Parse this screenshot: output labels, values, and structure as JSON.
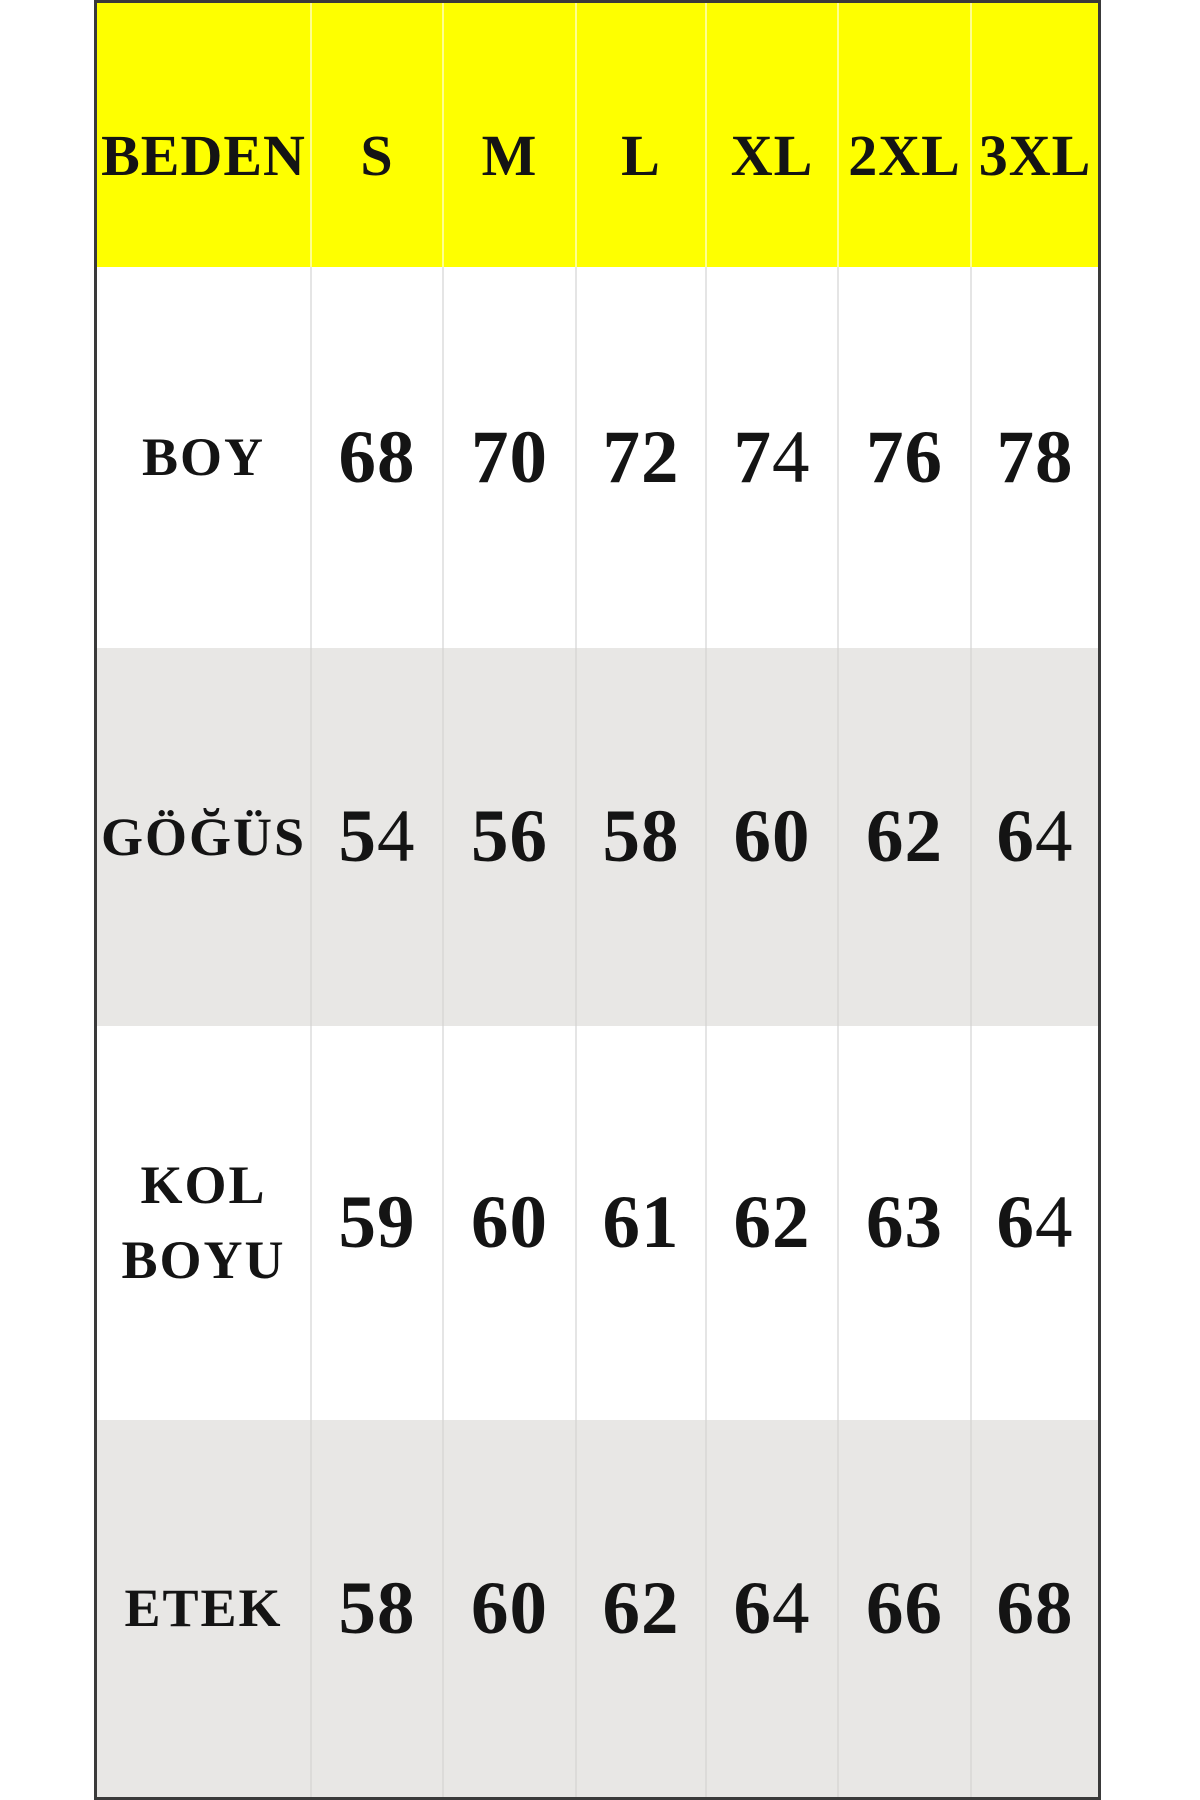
{
  "colors": {
    "header_bg": "#FEFF00",
    "stripe_bg": "#E8E7E5",
    "border": "#3A3A3A",
    "text": "#141414"
  },
  "chart_data": {
    "type": "table",
    "columns": [
      "BEDEN",
      "S",
      "M",
      "L",
      "XL",
      "2XL",
      "3XL"
    ],
    "rows": [
      {
        "label": "BOY",
        "values": [
          68,
          70,
          72,
          74,
          76,
          78
        ]
      },
      {
        "label": "GÖĞÜS",
        "values": [
          54,
          56,
          58,
          60,
          62,
          64
        ]
      },
      {
        "label": "KOL BOYU",
        "values": [
          59,
          60,
          61,
          62,
          63,
          64
        ]
      },
      {
        "label": "ETEK",
        "values": [
          58,
          60,
          62,
          64,
          66,
          68
        ]
      }
    ],
    "layout": {
      "header_background": "yellow",
      "row_striping": "white / light-gray alternating",
      "grid": "thin light vertical column dividers, dark outer border"
    }
  }
}
